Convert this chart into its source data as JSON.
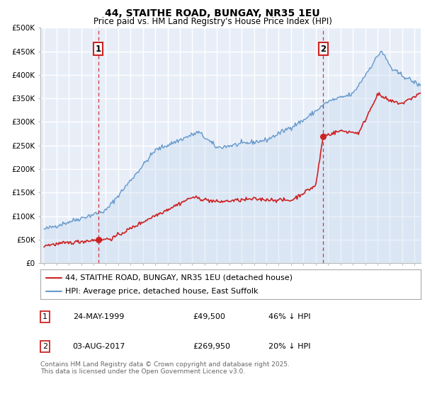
{
  "title": "44, STAITHE ROAD, BUNGAY, NR35 1EU",
  "subtitle": "Price paid vs. HM Land Registry's House Price Index (HPI)",
  "ylim": [
    0,
    500000
  ],
  "yticks": [
    0,
    50000,
    100000,
    150000,
    200000,
    250000,
    300000,
    350000,
    400000,
    450000,
    500000
  ],
  "ytick_labels": [
    "£0",
    "£50K",
    "£100K",
    "£150K",
    "£200K",
    "£250K",
    "£300K",
    "£350K",
    "£400K",
    "£450K",
    "£500K"
  ],
  "xlim_start": 1994.7,
  "xlim_end": 2025.5,
  "xticks": [
    1995,
    1996,
    1997,
    1998,
    1999,
    2000,
    2001,
    2002,
    2003,
    2004,
    2005,
    2006,
    2007,
    2008,
    2009,
    2010,
    2011,
    2012,
    2013,
    2014,
    2015,
    2016,
    2017,
    2018,
    2019,
    2020,
    2021,
    2022,
    2023,
    2024,
    2025
  ],
  "plot_bg_color": "#e8eef8",
  "grid_color": "#ffffff",
  "hpi_color": "#6699cc",
  "hpi_fill_color": "#c5d8f0",
  "price_color": "#cc2222",
  "vline_color": "#cc2222",
  "sale1_year": 1999.39,
  "sale1_price": 49500,
  "sale2_year": 2017.6,
  "sale2_price": 269950,
  "legend_label_price": "44, STAITHE ROAD, BUNGAY, NR35 1EU (detached house)",
  "legend_label_hpi": "HPI: Average price, detached house, East Suffolk",
  "table_row1": [
    "1",
    "24-MAY-1999",
    "£49,500",
    "46% ↓ HPI"
  ],
  "table_row2": [
    "2",
    "03-AUG-2017",
    "£269,950",
    "20% ↓ HPI"
  ],
  "footer": "Contains HM Land Registry data © Crown copyright and database right 2025.\nThis data is licensed under the Open Government Licence v3.0.",
  "title_fontsize": 10,
  "subtitle_fontsize": 8.5,
  "tick_fontsize": 7.5,
  "legend_fontsize": 8,
  "table_fontsize": 8,
  "footer_fontsize": 6.5
}
